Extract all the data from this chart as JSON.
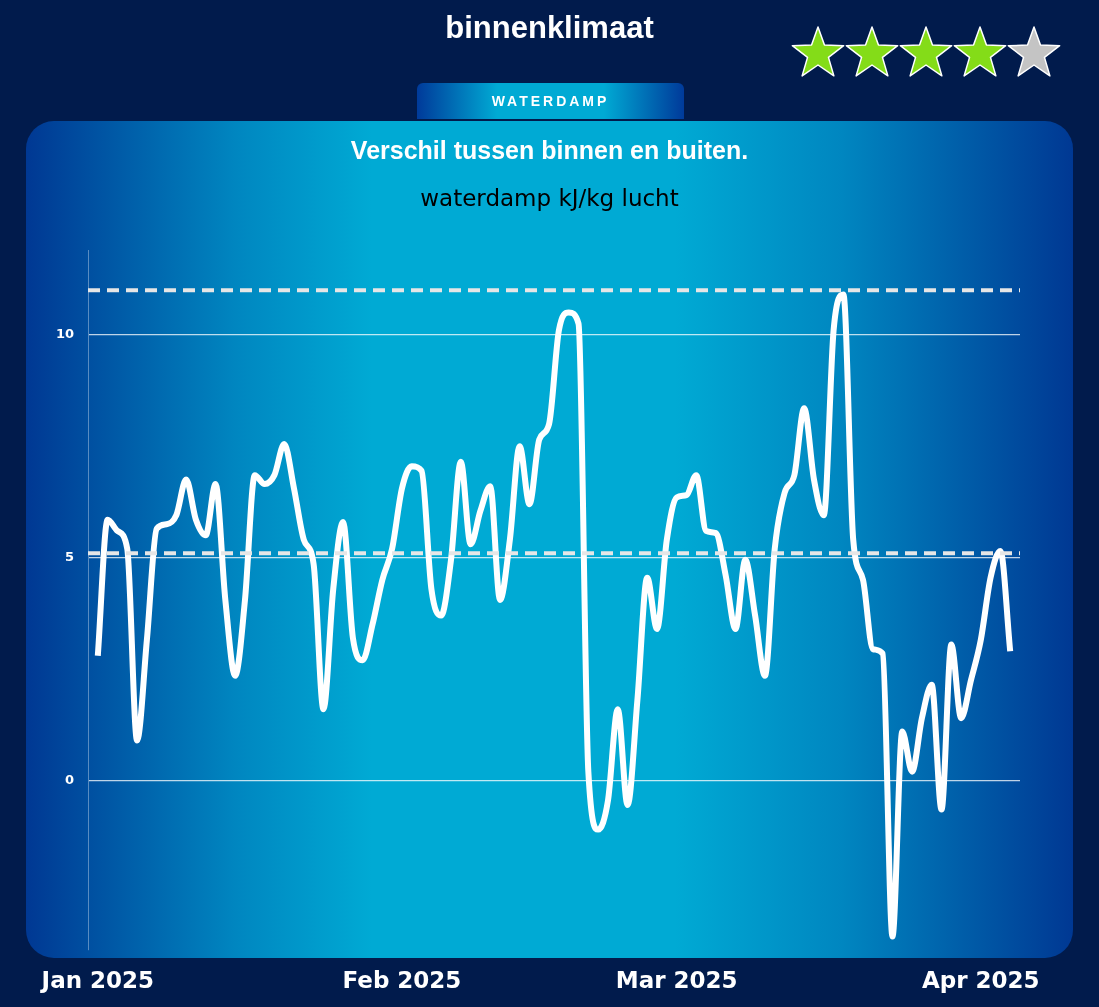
{
  "chart_data": {
    "type": "line",
    "title": "binnenklimaat",
    "subtitle": "Verschil tussen binnen en buiten.",
    "ylabel": "waterdamp kJ/kg lucht",
    "annotations": [
      "WATERDAMP"
    ],
    "x": [
      "2025-01-01",
      "2025-01-02",
      "2025-01-03",
      "2025-01-04",
      "2025-01-05",
      "2025-01-06",
      "2025-01-07",
      "2025-01-08",
      "2025-01-09",
      "2025-01-10",
      "2025-01-11",
      "2025-01-12",
      "2025-01-13",
      "2025-01-14",
      "2025-01-15",
      "2025-01-16",
      "2025-01-17",
      "2025-01-18",
      "2025-01-19",
      "2025-01-20",
      "2025-01-21",
      "2025-01-22",
      "2025-01-23",
      "2025-01-24",
      "2025-01-25",
      "2025-01-26",
      "2025-01-27",
      "2025-01-28",
      "2025-01-29",
      "2025-01-30",
      "2025-01-31",
      "2025-02-01",
      "2025-02-02",
      "2025-02-03",
      "2025-02-04",
      "2025-02-05",
      "2025-02-06",
      "2025-02-07",
      "2025-02-08",
      "2025-02-09",
      "2025-02-10",
      "2025-02-11",
      "2025-02-12",
      "2025-02-13",
      "2025-02-14",
      "2025-02-15",
      "2025-02-16",
      "2025-02-17",
      "2025-02-18",
      "2025-02-19",
      "2025-02-20",
      "2025-02-21",
      "2025-02-22",
      "2025-02-23",
      "2025-02-24",
      "2025-02-25",
      "2025-02-26",
      "2025-02-27",
      "2025-02-28",
      "2025-03-01",
      "2025-03-02",
      "2025-03-03",
      "2025-03-04",
      "2025-03-05",
      "2025-03-06",
      "2025-03-07",
      "2025-03-08",
      "2025-03-09",
      "2025-03-10",
      "2025-03-11",
      "2025-03-12",
      "2025-03-13",
      "2025-03-14",
      "2025-03-15",
      "2025-03-16",
      "2025-03-17",
      "2025-03-18",
      "2025-03-19",
      "2025-03-20",
      "2025-03-21",
      "2025-03-22",
      "2025-03-23",
      "2025-03-24",
      "2025-03-25",
      "2025-03-26",
      "2025-03-27",
      "2025-03-28",
      "2025-03-29",
      "2025-03-30",
      "2025-03-31",
      "2025-04-01",
      "2025-04-02",
      "2025-04-03",
      "2025-04-04"
    ],
    "series": [
      {
        "color": "#ffffff",
        "values": [
          2.8,
          5.85,
          5.6,
          5.2,
          0.9,
          3.15,
          5.65,
          5.75,
          5.95,
          6.75,
          5.85,
          5.5,
          6.65,
          4.05,
          2.35,
          4.05,
          6.85,
          6.65,
          6.85,
          7.55,
          6.55,
          5.4,
          4.85,
          1.6,
          4.3,
          5.8,
          3.2,
          2.7,
          3.5,
          4.5,
          5.2,
          6.55,
          7.05,
          6.95,
          4.3,
          3.7,
          4.95,
          7.15,
          5.3,
          6.05,
          6.6,
          4.05,
          5.4,
          7.5,
          6.2,
          7.65,
          8.0,
          10.1,
          10.5,
          10.25,
          0.2,
          -1.1,
          -0.45,
          1.6,
          -0.55,
          1.8,
          4.55,
          3.4,
          5.4,
          6.35,
          6.4,
          6.85,
          5.6,
          5.55,
          4.6,
          3.4,
          4.95,
          3.7,
          2.35,
          5.2,
          6.45,
          6.85,
          8.35,
          6.75,
          5.95,
          10.1,
          10.9,
          5.4,
          4.5,
          2.95,
          2.85,
          -3.5,
          1.1,
          0.2,
          1.4,
          2.15,
          -0.65,
          3.05,
          1.4,
          2.25,
          3.15,
          4.55,
          5.15,
          2.9
        ]
      }
    ],
    "xlim": [
      "2024-12-31",
      "2025-04-05"
    ],
    "xticks": [
      {
        "value": "2025-01-01",
        "label": "Jan 2025"
      },
      {
        "value": "2025-02-01",
        "label": "Feb 2025"
      },
      {
        "value": "2025-03-01",
        "label": "Mar 2025"
      },
      {
        "value": "2025-04-01",
        "label": "Apr 2025"
      }
    ],
    "ylim": [
      -3.8,
      11.9
    ],
    "yticks": [
      0,
      5,
      10
    ],
    "ref_lines": [
      {
        "axis": "y",
        "value": 11,
        "color": "#e6e6e6",
        "line_style": "dashed"
      },
      {
        "axis": "y",
        "value": 5.1,
        "color": "#e6e6e6",
        "line_style": "dashed"
      }
    ],
    "grid": "y",
    "marker": "none"
  }
}
